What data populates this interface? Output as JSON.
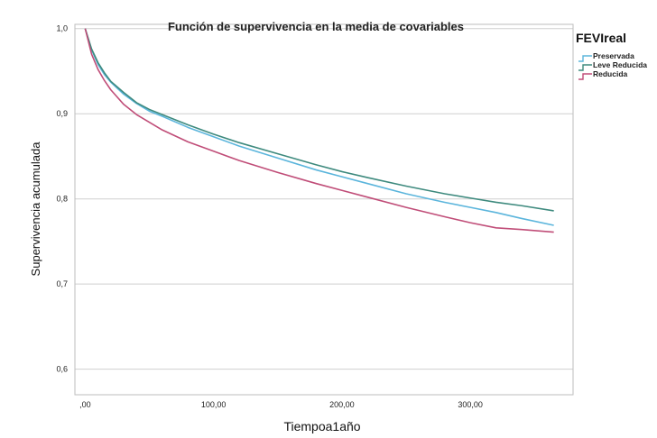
{
  "chart_data": {
    "type": "line",
    "title": "Función de supervivencia en la media de covariables",
    "xlabel": "Tiempoa1año",
    "ylabel": "Supervivencia acumulada",
    "xlim": [
      -8,
      380
    ],
    "ylim": [
      0.57,
      1.005
    ],
    "xticks": [
      {
        "value": 0,
        "label": ",00"
      },
      {
        "value": 100,
        "label": "100,00"
      },
      {
        "value": 200,
        "label": "200,00"
      },
      {
        "value": 300,
        "label": "300,00"
      }
    ],
    "yticks": [
      {
        "value": 0.6,
        "label": "0,6"
      },
      {
        "value": 0.7,
        "label": "0,7"
      },
      {
        "value": 0.8,
        "label": "0,8"
      },
      {
        "value": 0.9,
        "label": "0,9"
      },
      {
        "value": 1.0,
        "label": "1,0"
      }
    ],
    "grid": "horizontal",
    "legend": {
      "title": "FEVIreal",
      "position": "right"
    },
    "series": [
      {
        "name": "Preservada",
        "color": "#5bb5dc",
        "x": [
          0,
          5,
          10,
          15,
          20,
          30,
          40,
          50,
          60,
          80,
          100,
          120,
          150,
          180,
          200,
          220,
          250,
          280,
          300,
          320,
          340,
          365
        ],
        "y": [
          1.0,
          0.975,
          0.958,
          0.946,
          0.937,
          0.923,
          0.912,
          0.903,
          0.897,
          0.884,
          0.873,
          0.862,
          0.848,
          0.834,
          0.826,
          0.818,
          0.806,
          0.796,
          0.79,
          0.784,
          0.777,
          0.769
        ]
      },
      {
        "name": "Leve Reducida",
        "color": "#3e8a7e",
        "x": [
          0,
          5,
          10,
          15,
          20,
          30,
          40,
          50,
          60,
          80,
          100,
          120,
          150,
          180,
          200,
          220,
          250,
          280,
          300,
          320,
          340,
          365
        ],
        "y": [
          1.0,
          0.976,
          0.96,
          0.948,
          0.938,
          0.925,
          0.913,
          0.905,
          0.899,
          0.887,
          0.876,
          0.866,
          0.853,
          0.84,
          0.832,
          0.825,
          0.815,
          0.806,
          0.801,
          0.796,
          0.792,
          0.786
        ]
      },
      {
        "name": "Reducida",
        "color": "#c04d78",
        "x": [
          0,
          5,
          10,
          15,
          20,
          30,
          40,
          50,
          60,
          80,
          100,
          120,
          150,
          180,
          200,
          220,
          250,
          280,
          300,
          320,
          340,
          365
        ],
        "y": [
          1.0,
          0.97,
          0.952,
          0.939,
          0.928,
          0.911,
          0.899,
          0.89,
          0.881,
          0.867,
          0.856,
          0.845,
          0.831,
          0.818,
          0.81,
          0.802,
          0.79,
          0.779,
          0.772,
          0.766,
          0.764,
          0.761
        ]
      }
    ]
  }
}
